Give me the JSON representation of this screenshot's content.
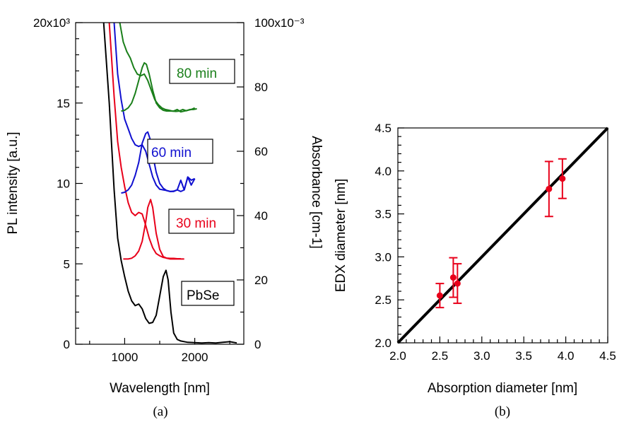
{
  "chart_data": [
    {
      "type": "line",
      "panel_label": "(a)",
      "xlabel": "Wavelength [nm]",
      "ylabel_left": "PL intensity [a.u.]",
      "ylabel_right": "Absorbance [cm-1]",
      "xticks": [
        "1000",
        "2000"
      ],
      "yticks_left": [
        "0",
        "5",
        "10",
        "15",
        "20x10³"
      ],
      "yticks_right": [
        "0",
        "20",
        "40",
        "60",
        "80",
        "100x10⁻³"
      ],
      "xlim": [
        300,
        2700
      ],
      "ylim_left": [
        0,
        20000
      ],
      "ylim_right": [
        0,
        0.1
      ],
      "grid": false,
      "legend": "none",
      "series": [
        {
          "name": "PbSe",
          "color": "#000000",
          "x": [
            700,
            780,
            850,
            900,
            950,
            1000,
            1050,
            1100,
            1150,
            1200,
            1250,
            1300,
            1350,
            1400,
            1450,
            1500,
            1550,
            1590,
            1620,
            1660,
            1700,
            1750,
            1800,
            1900,
            2000,
            2100,
            2200,
            2300,
            2400,
            2500,
            2600
          ],
          "y": [
            100,
            75,
            48,
            33,
            26,
            21,
            16.5,
            13.5,
            12,
            12.5,
            11,
            8,
            6.5,
            6.8,
            9,
            15,
            21,
            23,
            20,
            10,
            3.5,
            1.5,
            1,
            0.6,
            0.5,
            0.4,
            0.5,
            0.4,
            0.6,
            0.8,
            0.4
          ]
        },
        {
          "name": "30 min",
          "color": "#e8001a",
          "x": [
            780,
            850,
            900,
            950,
            1000,
            1050,
            1100,
            1150,
            1200,
            1250,
            1300,
            1350,
            1400,
            1450,
            1500,
            1550,
            1600,
            1650,
            1700,
            1750,
            1800
          ],
          "y": [
            100,
            77,
            63,
            55,
            49,
            44,
            41,
            40,
            41,
            40.5,
            37,
            33,
            30,
            28.2,
            27.5,
            27,
            26.8,
            26.7,
            26.7,
            26.6,
            26.6
          ]
        },
        {
          "name": "60 min",
          "color": "#1010d0",
          "x": [
            850,
            900,
            950,
            1000,
            1050,
            1100,
            1150,
            1200,
            1250,
            1300,
            1350,
            1400,
            1450,
            1500,
            1550,
            1600,
            1650,
            1700,
            1750,
            1800,
            1850,
            1900,
            1950,
            2000
          ],
          "y": [
            100,
            84,
            76,
            70,
            67,
            64,
            62,
            61.5,
            62,
            60,
            56,
            52,
            49.5,
            48.2,
            48,
            47.8,
            47.5,
            47.6,
            48,
            51,
            48,
            52,
            49.5,
            51.5
          ]
        },
        {
          "name": "80 min",
          "color": "#1a7f1a",
          "x": [
            930,
            980,
            1030,
            1080,
            1130,
            1180,
            1230,
            1280,
            1330,
            1380,
            1430,
            1480,
            1530,
            1580,
            1630,
            1680,
            1730,
            1780,
            1830,
            1880,
            1930,
            1980,
            2030
          ],
          "y": [
            100,
            94,
            91,
            89,
            86,
            84,
            83.5,
            84,
            82,
            79,
            76,
            74.5,
            73.5,
            73,
            72.8,
            72.5,
            72.4,
            72.5,
            73,
            72.6,
            73,
            73,
            73.2
          ]
        },
        {
          "name": "PL 30 min",
          "color": "#e8001a",
          "x": [
            980,
            1050,
            1100,
            1150,
            1200,
            1250,
            1300,
            1330,
            1370,
            1400,
            1450,
            1500,
            1550,
            1600,
            1650,
            1700,
            1750,
            1800,
            1850
          ],
          "y": [
            5300,
            5300,
            5350,
            5500,
            5800,
            6400,
            7600,
            8500,
            9000,
            8500,
            6900,
            5900,
            5450,
            5350,
            5300,
            5300,
            5300,
            5300,
            5300
          ]
        },
        {
          "name": "PL 60 min",
          "color": "#1010d0",
          "x": [
            950,
            1000,
            1050,
            1100,
            1150,
            1200,
            1250,
            1300,
            1330,
            1360,
            1400,
            1450,
            1500,
            1550,
            1600,
            1650,
            1700,
            1750,
            1800,
            1850,
            1900,
            1950,
            2000
          ],
          "y": [
            9400,
            9450,
            9600,
            9900,
            10500,
            11300,
            12500,
            13100,
            13200,
            12800,
            11800,
            10700,
            10000,
            9700,
            9550,
            9500,
            9500,
            9600,
            9500,
            9600,
            10400,
            10200,
            10300
          ]
        },
        {
          "name": "PL 80 min",
          "color": "#1a7f1a",
          "x": [
            950,
            1000,
            1050,
            1100,
            1150,
            1200,
            1250,
            1280,
            1310,
            1350,
            1400,
            1450,
            1500,
            1550,
            1600,
            1650,
            1700,
            1750,
            1800,
            1850,
            1900,
            1950,
            2000
          ],
          "y": [
            14500,
            14550,
            14700,
            15000,
            15600,
            16400,
            17200,
            17500,
            17400,
            16800,
            15800,
            15000,
            14700,
            14550,
            14500,
            14500,
            14500,
            14600,
            14450,
            14500,
            14550,
            14600,
            14700
          ]
        }
      ],
      "curve_labels": [
        "80 min",
        "60 min",
        "30 min",
        "PbSe"
      ]
    },
    {
      "type": "scatter",
      "panel_label": "(b)",
      "xlabel": "Absorption diameter [nm]",
      "ylabel": "EDX diameter [nm]",
      "xlim": [
        2.0,
        4.5
      ],
      "ylim": [
        2.0,
        4.5
      ],
      "xticks": [
        "2.0",
        "2.5",
        "3.0",
        "3.5",
        "4.0",
        "4.5"
      ],
      "yticks": [
        "2.0",
        "2.5",
        "3.0",
        "3.5",
        "4.0",
        "4.5"
      ],
      "grid": false,
      "legend": "none",
      "points": [
        {
          "x": 2.5,
          "y": 2.55,
          "err": 0.14
        },
        {
          "x": 2.66,
          "y": 2.76,
          "err": 0.23
        },
        {
          "x": 2.71,
          "y": 2.69,
          "err": 0.23
        },
        {
          "x": 3.8,
          "y": 3.79,
          "err": 0.32
        },
        {
          "x": 3.96,
          "y": 3.91,
          "err": 0.23
        }
      ],
      "point_color": "#e8001a",
      "line": {
        "x": [
          2.0,
          4.5
        ],
        "y": [
          2.0,
          4.5
        ],
        "color": "#000000"
      }
    }
  ]
}
